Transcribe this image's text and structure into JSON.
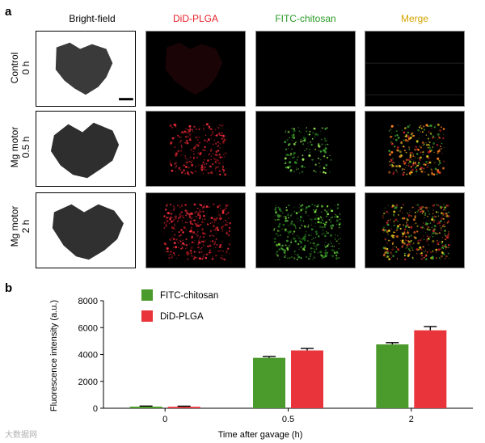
{
  "panels": {
    "a": "a",
    "b": "b"
  },
  "panel_a": {
    "columns": [
      "Bright-field",
      "DiD-PLGA",
      "FITC-chitosan",
      "Merge"
    ],
    "column_colors": [
      "#000000",
      "#e8202a",
      "#2a9a25",
      "#d4a400"
    ],
    "rows": [
      {
        "line1": "Control",
        "line2": "0 h"
      },
      {
        "line1": "Mg motor",
        "line2": "0.5 h"
      },
      {
        "line1": "Mg motor",
        "line2": "2 h"
      }
    ]
  },
  "chart_data": {
    "type": "bar",
    "categories": [
      "0",
      "0.5",
      "2"
    ],
    "series": [
      {
        "name": "FITC-chitosan",
        "values": [
          120,
          3750,
          4750
        ],
        "errors": [
          40,
          100,
          130
        ],
        "color": "#4a9a2c"
      },
      {
        "name": "DiD-PLGA",
        "values": [
          110,
          4300,
          5800
        ],
        "errors": [
          40,
          150,
          280
        ],
        "color": "#e8343a"
      }
    ],
    "xlabel": "Time after gavage (h)",
    "ylabel": "Fluorescence intensity (a.u.)",
    "ylim": [
      0,
      8000
    ],
    "yticks": [
      0,
      2000,
      4000,
      6000,
      8000
    ],
    "legend_position": "top-left",
    "grid": false
  },
  "watermark": "大数据网"
}
